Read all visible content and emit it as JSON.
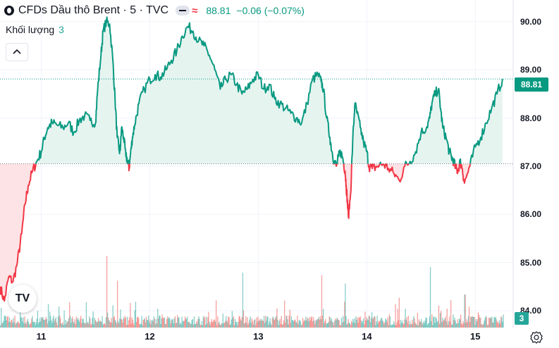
{
  "header": {
    "title": "CFDs Dầu thô Brent · 5 · TVC",
    "last_price": "88.81",
    "change": "−0.06 (−0.07%)"
  },
  "volume_indicator": {
    "label": "Khối lượng",
    "value": "3"
  },
  "price_label": "88.81",
  "volume_label": "3",
  "colors": {
    "up": "#089981",
    "down": "#f23645",
    "up_fill": "#e6f4f0",
    "down_fill": "#fde3e5",
    "volume_up": "#26a69a",
    "volume_down": "#ef5350"
  },
  "icons": [
    "collapse-chevron-icon",
    "tradingview-logo-icon",
    "settings-gear-icon",
    "compare-wave-icon"
  ],
  "chart_data": {
    "type": "area",
    "baseline": 87.05,
    "last_price": 88.81,
    "ylim": [
      83.65,
      90.45
    ],
    "y_ticks": [
      "90.00",
      "89.00",
      "88.00",
      "87.00",
      "86.00",
      "85.00",
      "84.00"
    ],
    "x_ticks": [
      "11",
      "12",
      "13",
      "14",
      "15"
    ],
    "xlim": [
      10.62,
      15.31
    ],
    "grid": true,
    "series": [
      {
        "x": [
          10.62,
          10.66,
          10.7,
          10.74,
          10.78,
          10.82,
          10.85,
          10.88,
          10.92,
          10.96,
          11.0,
          11.03,
          11.06,
          11.1,
          11.15,
          11.2,
          11.25,
          11.3,
          11.35,
          11.4,
          11.45,
          11.5,
          11.52,
          11.55,
          11.57,
          11.6,
          11.63,
          11.66,
          11.68,
          11.7,
          11.72,
          11.73,
          11.74,
          11.76,
          11.78,
          11.8,
          11.81,
          11.82,
          11.84,
          11.86,
          11.9,
          11.95,
          12.0,
          12.05,
          12.1,
          12.15,
          12.2,
          12.25,
          12.3,
          12.35,
          12.4,
          12.45,
          12.5,
          12.55,
          12.6,
          12.65,
          12.7,
          12.75,
          12.8,
          12.85,
          12.9,
          12.95,
          13.0,
          13.05,
          13.1,
          13.15,
          13.2,
          13.25,
          13.3,
          13.35,
          13.4,
          13.45,
          13.5,
          13.55,
          13.58,
          13.6,
          13.63,
          13.66,
          13.68,
          13.7,
          13.72,
          13.74,
          13.76,
          13.78,
          13.8,
          13.81,
          13.82,
          13.83,
          13.85,
          13.87,
          13.89,
          13.91,
          13.94,
          13.97,
          14.0,
          14.02,
          14.05,
          14.1,
          14.15,
          14.2,
          14.25,
          14.3,
          14.35,
          14.4,
          14.45,
          14.5,
          14.55,
          14.58,
          14.6,
          14.63,
          14.66,
          14.68,
          14.7,
          14.73,
          14.76,
          14.78,
          14.8,
          14.82,
          14.84,
          14.86,
          14.88,
          14.9,
          14.95,
          15.0,
          15.05,
          15.1,
          15.15,
          15.2,
          15.25
        ],
        "y": [
          84.5,
          84.2,
          84.7,
          84.6,
          85.0,
          85.6,
          86.2,
          86.6,
          86.9,
          87.1,
          87.3,
          87.6,
          87.8,
          87.9,
          87.85,
          87.8,
          87.9,
          87.7,
          87.95,
          88.05,
          87.95,
          87.9,
          88.6,
          89.3,
          89.8,
          90.0,
          89.95,
          89.2,
          88.4,
          87.6,
          87.3,
          87.4,
          87.8,
          87.6,
          87.2,
          87.1,
          86.95,
          87.2,
          87.6,
          87.85,
          88.3,
          88.6,
          88.8,
          88.9,
          88.85,
          89.0,
          89.2,
          89.4,
          89.7,
          89.9,
          89.8,
          89.6,
          89.5,
          89.3,
          89.0,
          88.6,
          88.8,
          88.9,
          88.7,
          88.5,
          88.6,
          88.8,
          88.9,
          88.6,
          88.7,
          88.4,
          88.3,
          88.2,
          88.1,
          88.0,
          87.9,
          88.3,
          88.8,
          88.9,
          88.75,
          88.6,
          88.0,
          87.6,
          87.3,
          87.1,
          87.0,
          87.2,
          87.3,
          87.15,
          86.9,
          86.6,
          86.3,
          85.95,
          86.4,
          87.5,
          88.3,
          88.1,
          87.8,
          87.5,
          87.3,
          87.0,
          86.95,
          87.0,
          87.05,
          86.95,
          86.85,
          86.7,
          87.0,
          87.1,
          87.3,
          87.7,
          87.8,
          88.0,
          88.3,
          88.5,
          88.6,
          88.2,
          87.8,
          87.6,
          87.3,
          87.2,
          87.1,
          86.95,
          86.9,
          87.1,
          86.95,
          86.65,
          87.0,
          87.4,
          87.6,
          87.9,
          88.2,
          88.5,
          88.81
        ]
      }
    ],
    "volume": {
      "ylim": [
        0,
        160
      ],
      "peaks": [
        {
          "x": 11.6,
          "v": 130
        },
        {
          "x": 11.7,
          "v": 85
        },
        {
          "x": 12.85,
          "v": 100
        },
        {
          "x": 13.58,
          "v": 95
        },
        {
          "x": 13.8,
          "v": 80
        },
        {
          "x": 14.58,
          "v": 110
        },
        {
          "x": 14.9,
          "v": 60
        }
      ]
    }
  }
}
